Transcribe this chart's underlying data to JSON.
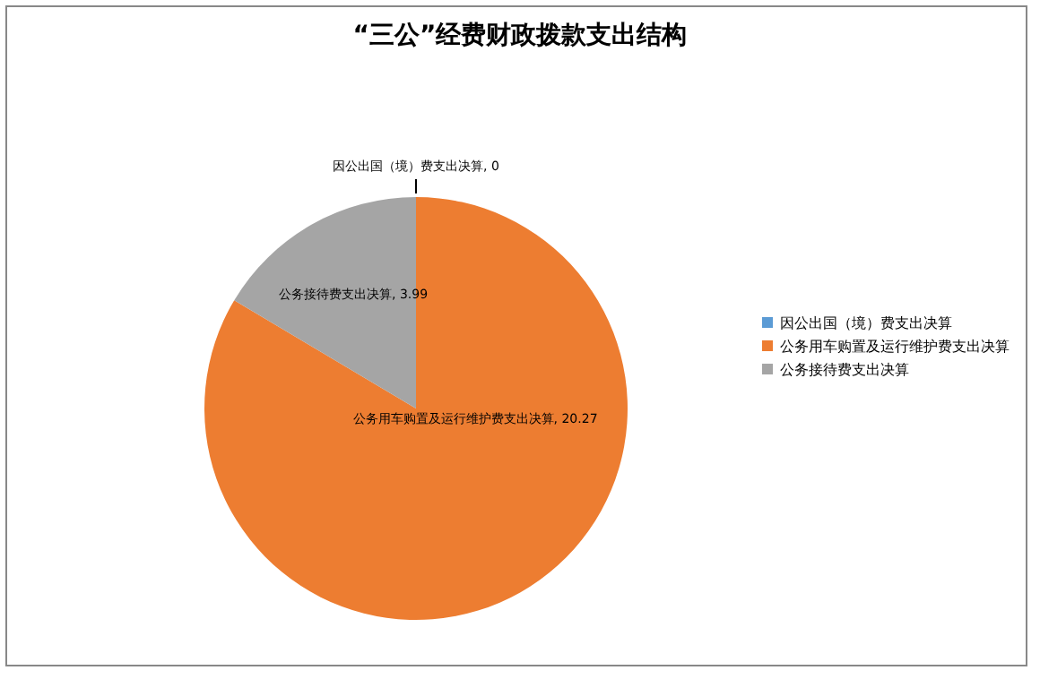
{
  "chart_data": {
    "type": "pie",
    "title": "“三公”经费财政拨款支出结构",
    "categories": [
      "因公出国（境）费支出决算",
      "公务用车购置及运行维护费支出决算",
      "公务接待费支出决算"
    ],
    "values": [
      0,
      20.27,
      3.99
    ],
    "value_labels": [
      "因公出国（境）费支出决算, 0",
      "公务用车购置及运行维护费支出决算, 20.27",
      "公务接待费支出决算, 3.99"
    ],
    "colors": [
      "#5b9bd5",
      "#ed7d31",
      "#a5a5a5"
    ],
    "legend": "right"
  }
}
